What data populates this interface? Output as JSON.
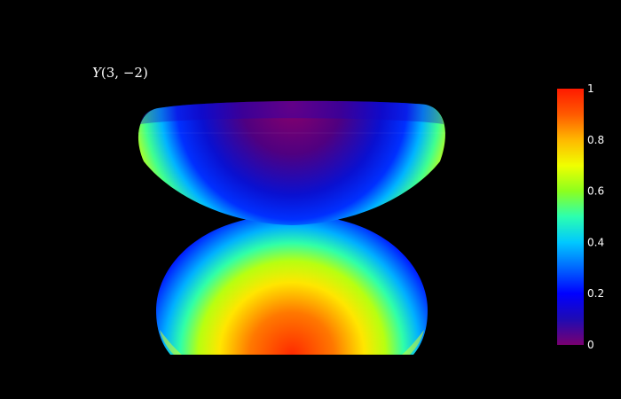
{
  "chart_data": {
    "type": "surface",
    "title": {
      "symbol": "Y",
      "args": "(3, −2)"
    },
    "colorscale": {
      "name": "rainbow",
      "stops": [
        [
          0.0,
          "#7a0070"
        ],
        [
          0.1,
          "#1f0bb3"
        ],
        [
          0.2,
          "#0000ff"
        ],
        [
          0.3,
          "#0066ff"
        ],
        [
          0.4,
          "#00c8ff"
        ],
        [
          0.5,
          "#2bffb0"
        ],
        [
          0.6,
          "#8cff1e"
        ],
        [
          0.7,
          "#f0ff00"
        ],
        [
          0.8,
          "#ffb800"
        ],
        [
          0.9,
          "#ff5a00"
        ],
        [
          1.0,
          "#ff1a00"
        ]
      ]
    },
    "colorbar": {
      "range": [
        0,
        1
      ],
      "ticks": [
        0,
        0.2,
        0.4,
        0.6,
        0.8,
        1
      ],
      "tick_labels": [
        "0",
        "0.2",
        "0.4",
        "0.6",
        "0.8",
        "1"
      ]
    },
    "background_color": "#000000",
    "tick_color": "#ffffff"
  }
}
